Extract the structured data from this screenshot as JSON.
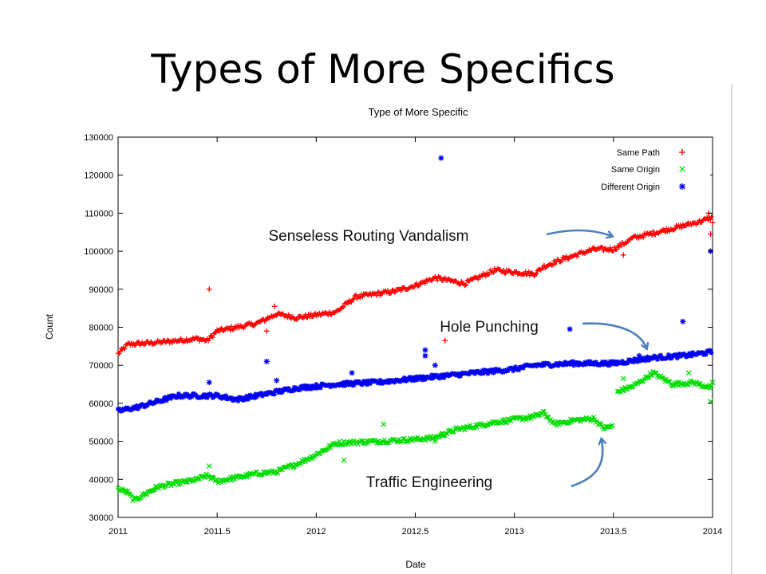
{
  "slide": {
    "title": "Types of More Specifics"
  },
  "chart_data": {
    "type": "scatter",
    "title": "Type of More Specific",
    "xlabel": "Date",
    "ylabel": "Count",
    "xlim": [
      2011,
      2014
    ],
    "ylim": [
      30000,
      130000
    ],
    "x_ticks": [
      2011,
      2011.5,
      2012,
      2012.5,
      2013,
      2013.5,
      2014
    ],
    "y_ticks": [
      30000,
      40000,
      50000,
      60000,
      70000,
      80000,
      90000,
      100000,
      110000,
      120000,
      130000
    ],
    "legend_position": "top-right",
    "series": [
      {
        "name": "Same Path",
        "marker": "plus",
        "color": "#ff0000",
        "trend": [
          [
            2011.0,
            73000
          ],
          [
            2011.05,
            75500
          ],
          [
            2011.2,
            76000
          ],
          [
            2011.4,
            77000
          ],
          [
            2011.45,
            76500
          ],
          [
            2011.5,
            79000
          ],
          [
            2011.7,
            81000
          ],
          [
            2011.8,
            83500
          ],
          [
            2011.9,
            82500
          ],
          [
            2012.1,
            84000
          ],
          [
            2012.2,
            88000
          ],
          [
            2012.4,
            89500
          ],
          [
            2012.5,
            91000
          ],
          [
            2012.6,
            93000
          ],
          [
            2012.75,
            91500
          ],
          [
            2012.9,
            95000
          ],
          [
            2013.0,
            94500
          ],
          [
            2013.1,
            94000
          ],
          [
            2013.15,
            96000
          ],
          [
            2013.25,
            98000
          ],
          [
            2013.4,
            100500
          ],
          [
            2013.5,
            100500
          ],
          [
            2013.6,
            103500
          ],
          [
            2013.8,
            106000
          ],
          [
            2013.95,
            108000
          ],
          [
            2014.0,
            109000
          ]
        ],
        "outliers": [
          [
            2011.46,
            90000
          ],
          [
            2011.75,
            79000
          ],
          [
            2011.79,
            85500
          ],
          [
            2012.65,
            76500
          ],
          [
            2013.55,
            99000
          ],
          [
            2013.99,
            104500
          ],
          [
            2014.0,
            107500
          ],
          [
            2013.98,
            110000
          ]
        ]
      },
      {
        "name": "Same Origin",
        "marker": "x",
        "color": "#00dd00",
        "trend": [
          [
            2011.0,
            37500
          ],
          [
            2011.05,
            36500
          ],
          [
            2011.08,
            34500
          ],
          [
            2011.2,
            38000
          ],
          [
            2011.4,
            40000
          ],
          [
            2011.45,
            41000
          ],
          [
            2011.5,
            39500
          ],
          [
            2011.7,
            41500
          ],
          [
            2011.8,
            42000
          ],
          [
            2011.9,
            44000
          ],
          [
            2012.0,
            46500
          ],
          [
            2012.1,
            49500
          ],
          [
            2012.3,
            50000
          ],
          [
            2012.5,
            50500
          ],
          [
            2012.6,
            51000
          ],
          [
            2012.7,
            53000
          ],
          [
            2012.9,
            55000
          ],
          [
            2013.1,
            56500
          ],
          [
            2013.15,
            57500
          ],
          [
            2013.2,
            54500
          ],
          [
            2013.3,
            55500
          ],
          [
            2013.4,
            56000
          ],
          [
            2013.45,
            53500
          ],
          [
            2013.5,
            54000
          ],
          [
            2013.52,
            63000
          ],
          [
            2013.6,
            64500
          ],
          [
            2013.7,
            68000
          ],
          [
            2013.8,
            65000
          ],
          [
            2013.9,
            65500
          ],
          [
            2014.0,
            64000
          ]
        ],
        "outliers": [
          [
            2011.46,
            43500
          ],
          [
            2012.14,
            45000
          ],
          [
            2012.34,
            54500
          ],
          [
            2012.6,
            50000
          ],
          [
            2012.64,
            52000
          ],
          [
            2013.55,
            66500
          ],
          [
            2013.88,
            68000
          ],
          [
            2013.99,
            60500
          ],
          [
            2014.0,
            65500
          ]
        ]
      },
      {
        "name": "Different Origin",
        "marker": "asterisk",
        "color": "#0000ee",
        "trend": [
          [
            2011.0,
            58000
          ],
          [
            2011.1,
            59000
          ],
          [
            2011.3,
            62000
          ],
          [
            2011.5,
            62000
          ],
          [
            2011.6,
            61000
          ],
          [
            2011.75,
            62500
          ],
          [
            2011.9,
            64000
          ],
          [
            2012.1,
            65000
          ],
          [
            2012.3,
            65500
          ],
          [
            2012.5,
            66500
          ],
          [
            2012.6,
            67000
          ],
          [
            2012.8,
            68000
          ],
          [
            2013.0,
            69000
          ],
          [
            2013.1,
            70000
          ],
          [
            2013.3,
            70500
          ],
          [
            2013.5,
            70500
          ],
          [
            2013.7,
            72000
          ],
          [
            2013.85,
            72500
          ],
          [
            2014.0,
            73500
          ]
        ],
        "outliers": [
          [
            2011.46,
            65500
          ],
          [
            2011.75,
            71000
          ],
          [
            2011.8,
            66000
          ],
          [
            2012.18,
            68000
          ],
          [
            2012.55,
            74000
          ],
          [
            2012.55,
            72500
          ],
          [
            2012.6,
            70000
          ],
          [
            2012.63,
            124500
          ],
          [
            2013.28,
            79500
          ],
          [
            2013.63,
            72500
          ],
          [
            2013.85,
            81500
          ],
          [
            2013.99,
            100000
          ]
        ]
      }
    ],
    "annotations": [
      {
        "text": "Senseless Routing Vandalism"
      },
      {
        "text": "Hole Punching"
      },
      {
        "text": "Traffic Engineering"
      }
    ]
  }
}
